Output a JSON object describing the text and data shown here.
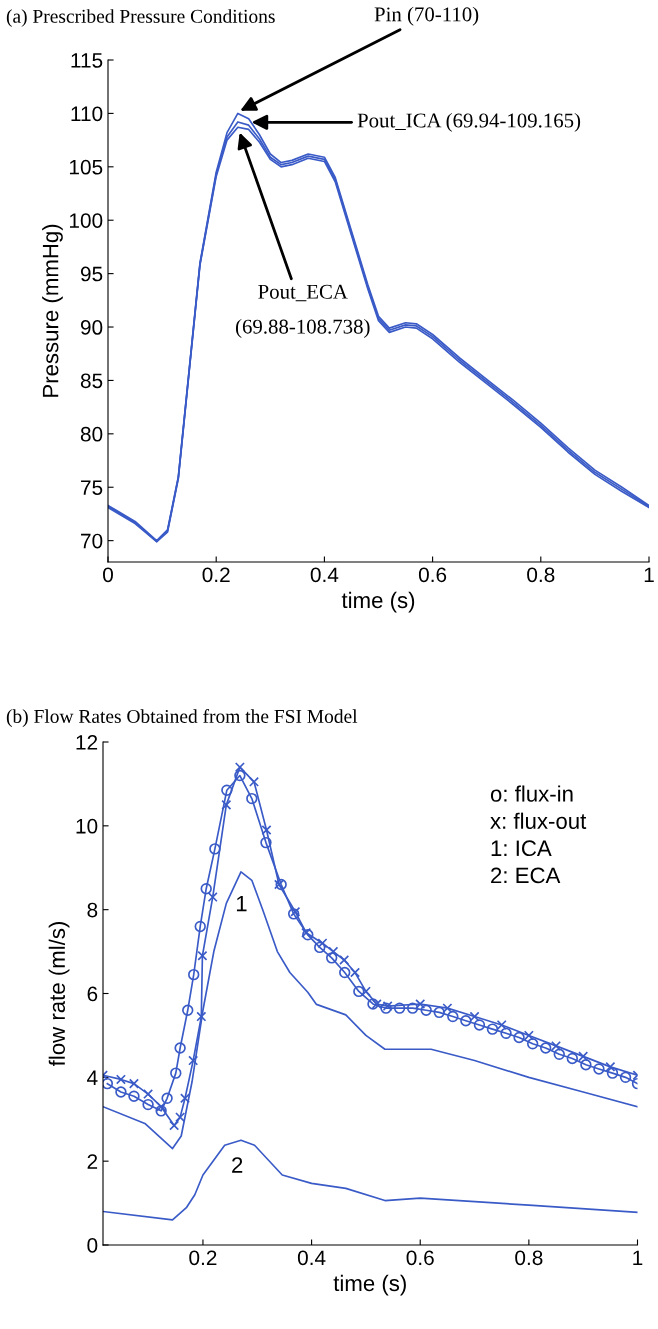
{
  "chart_data": [
    {
      "type": "line",
      "title": "(a) Prescribed Pressure Conditions",
      "xlabel": "time (s)",
      "ylabel": "Pressure (mmHg)",
      "xlim": [
        0,
        1
      ],
      "xticks": [
        0,
        0.2,
        0.4,
        0.6,
        0.8,
        1
      ],
      "ylim": [
        68,
        115
      ],
      "yticks": [
        70,
        75,
        80,
        85,
        90,
        95,
        100,
        105,
        110,
        115
      ],
      "grid": false,
      "legend": false,
      "series": [
        {
          "color": "#3a5bc7",
          "marker": "none",
          "x": [
            0,
            0.05,
            0.09,
            0.11,
            0.13,
            0.15,
            0.17,
            0.2,
            0.22,
            0.24,
            0.26,
            0.28,
            0.3,
            0.32,
            0.34,
            0.37,
            0.4,
            0.42,
            0.45,
            0.48,
            0.5,
            0.52,
            0.55,
            0.57,
            0.6,
            0.65,
            0.7,
            0.75,
            0.8,
            0.85,
            0.9,
            0.95,
            1
          ],
          "values": [
            73.3,
            71.8,
            70,
            71,
            76,
            86,
            96,
            104.5,
            108.2,
            110,
            109.5,
            108,
            106.2,
            105.4,
            105.6,
            106.2,
            105.9,
            104,
            99,
            94,
            91,
            89.9,
            90.4,
            90.3,
            89.3,
            87.1,
            85.1,
            83.1,
            81,
            78.7,
            76.6,
            75,
            73.3
          ]
        },
        {
          "color": "#3a5bc7",
          "marker": "none",
          "x": [
            0,
            0.05,
            0.09,
            0.11,
            0.13,
            0.15,
            0.17,
            0.2,
            0.22,
            0.24,
            0.26,
            0.28,
            0.3,
            0.32,
            0.34,
            0.37,
            0.4,
            0.42,
            0.45,
            0.48,
            0.5,
            0.52,
            0.55,
            0.57,
            0.6,
            0.65,
            0.7,
            0.75,
            0.8,
            0.85,
            0.9,
            0.95,
            1
          ],
          "values": [
            73.2,
            71.7,
            69.9,
            70.9,
            75.9,
            85.9,
            95.9,
            104.3,
            107.8,
            109.2,
            108.9,
            107.6,
            105.9,
            105.2,
            105.4,
            106,
            105.7,
            103.8,
            98.8,
            93.8,
            90.8,
            89.7,
            90.2,
            90.1,
            89.1,
            86.9,
            84.9,
            82.9,
            80.8,
            78.5,
            76.4,
            74.8,
            73.2
          ]
        },
        {
          "color": "#3a5bc7",
          "marker": "none",
          "x": [
            0,
            0.05,
            0.09,
            0.11,
            0.13,
            0.15,
            0.17,
            0.2,
            0.22,
            0.24,
            0.26,
            0.28,
            0.3,
            0.32,
            0.34,
            0.37,
            0.4,
            0.42,
            0.45,
            0.48,
            0.5,
            0.52,
            0.55,
            0.57,
            0.6,
            0.65,
            0.7,
            0.75,
            0.8,
            0.85,
            0.9,
            0.95,
            1
          ],
          "values": [
            73.1,
            71.6,
            69.9,
            70.8,
            75.8,
            85.8,
            95.8,
            104.1,
            107.5,
            108.7,
            108.5,
            107.3,
            105.7,
            105,
            105.2,
            105.8,
            105.5,
            103.6,
            98.6,
            93.6,
            90.6,
            89.5,
            90,
            89.9,
            88.9,
            86.7,
            84.7,
            82.7,
            80.6,
            78.3,
            76.2,
            74.6,
            73.1
          ]
        }
      ],
      "annotations": [
        {
          "text": "Pin (70-110)",
          "x": 0.235,
          "y": 110
        },
        {
          "text": "Pout_ICA (69.94-109.165)",
          "x": 0.255,
          "y": 109.165
        },
        "Pout_ECA\n\n(69.88-108.738)"
      ]
    },
    {
      "type": "line",
      "title": "(b) Flow Rates Obtained from the FSI Model",
      "xlabel": "time (s)",
      "ylabel": "flow rate (ml/s)",
      "xlim": [
        0.016,
        1
      ],
      "xticks": [
        0.2,
        0.4,
        0.6,
        0.8,
        1
      ],
      "ylim": [
        0,
        12
      ],
      "yticks": [
        0,
        2,
        4,
        6,
        8,
        10,
        12
      ],
      "grid": false,
      "legend": false,
      "series": [
        {
          "color": "#3a5bc7",
          "marker": "circle",
          "x": [
            0.024,
            0.049,
            0.073,
            0.099,
            0.123,
            0.134,
            0.15,
            0.158,
            0.172,
            0.183,
            0.195,
            0.206,
            0.222,
            0.244,
            0.268,
            0.29,
            0.316,
            0.344,
            0.367,
            0.393,
            0.415,
            0.437,
            0.461,
            0.487,
            0.513,
            0.537,
            0.562,
            0.586,
            0.611,
            0.635,
            0.66,
            0.684,
            0.709,
            0.733,
            0.758,
            0.782,
            0.807,
            0.831,
            0.856,
            0.88,
            0.905,
            0.929,
            0.954,
            0.978,
            1
          ],
          "values": [
            3.85,
            3.65,
            3.55,
            3.35,
            3.2,
            3.5,
            4.1,
            4.7,
            5.6,
            6.45,
            7.6,
            8.5,
            9.45,
            10.85,
            11.2,
            10.65,
            9.6,
            8.6,
            7.9,
            7.4,
            7.1,
            6.85,
            6.5,
            6.05,
            5.75,
            5.65,
            5.65,
            5.65,
            5.6,
            5.55,
            5.45,
            5.35,
            5.25,
            5.15,
            5.05,
            4.95,
            4.8,
            4.7,
            4.55,
            4.45,
            4.3,
            4.2,
            4.1,
            4,
            3.85
          ]
        },
        {
          "color": "#3a5bc7",
          "marker": "cross",
          "x": [
            0.016,
            0.049,
            0.073,
            0.099,
            0.123,
            0.147,
            0.158,
            0.167,
            0.182,
            0.197,
            0.199,
            0.218,
            0.243,
            0.268,
            0.294,
            0.317,
            0.34,
            0.37,
            0.39,
            0.42,
            0.44,
            0.46,
            0.48,
            0.5,
            0.52,
            0.54,
            0.6,
            0.65,
            0.7,
            0.75,
            0.8,
            0.85,
            0.9,
            0.95,
            1
          ],
          "values": [
            4.05,
            3.95,
            3.85,
            3.6,
            3.3,
            2.85,
            3.05,
            3.5,
            4.4,
            5.45,
            6.9,
            8.3,
            10.5,
            11.4,
            11.05,
            9.9,
            8.6,
            7.95,
            7.45,
            7.2,
            7,
            6.8,
            6.5,
            6.05,
            5.75,
            5.7,
            5.75,
            5.65,
            5.45,
            5.25,
            5,
            4.75,
            4.5,
            4.25,
            4.05
          ]
        },
        {
          "color": "#3a5bc7",
          "marker": "none",
          "x": [
            0.016,
            0.093,
            0.144,
            0.16,
            0.18,
            0.2,
            0.22,
            0.243,
            0.27,
            0.29,
            0.31,
            0.337,
            0.36,
            0.393,
            0.409,
            0.463,
            0.5,
            0.535,
            0.62,
            0.7,
            0.8,
            0.9,
            1
          ],
          "values": [
            3.3,
            2.9,
            2.3,
            2.6,
            3.9,
            5.6,
            7,
            8.15,
            8.9,
            8.7,
            8,
            7,
            6.5,
            6.03,
            5.74,
            5.49,
            5,
            4.67,
            4.67,
            4.4,
            4,
            3.65,
            3.3
          ]
        },
        {
          "color": "#3a5bc7",
          "marker": "none",
          "x": [
            0.016,
            0.144,
            0.17,
            0.185,
            0.2,
            0.24,
            0.27,
            0.295,
            0.346,
            0.4,
            0.463,
            0.535,
            0.6,
            0.8,
            1
          ],
          "values": [
            0.8,
            0.6,
            0.9,
            1.2,
            1.67,
            2.38,
            2.5,
            2.38,
            1.67,
            1.47,
            1.35,
            1.06,
            1.12,
            0.95,
            0.78
          ]
        }
      ],
      "annotations": [
        "1",
        "2",
        "o: flux-in",
        "x: flux-out",
        "1: ICA",
        "2: ECA"
      ]
    }
  ]
}
